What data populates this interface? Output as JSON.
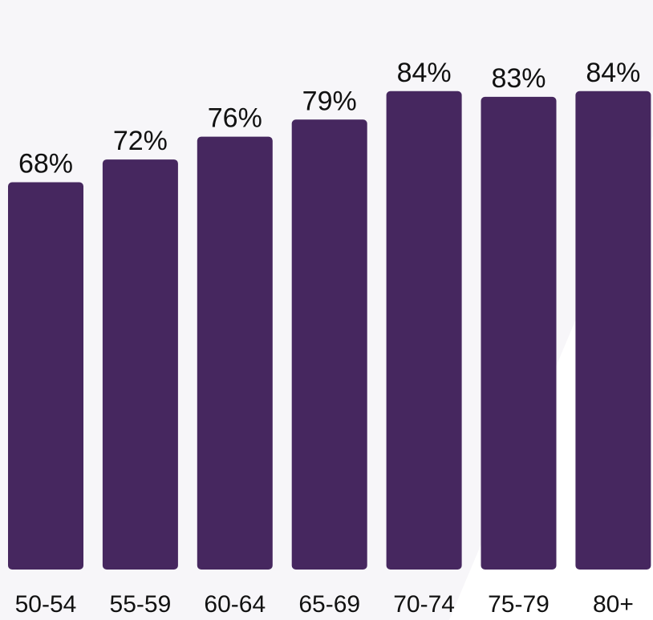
{
  "chart_data": {
    "type": "bar",
    "categories": [
      "50-54",
      "55-59",
      "60-64",
      "65-69",
      "70-74",
      "75-79",
      "80+"
    ],
    "values": [
      68,
      72,
      76,
      79,
      84,
      83,
      84
    ],
    "value_labels": [
      "68%",
      "72%",
      "76%",
      "79%",
      "84%",
      "83%",
      "84%"
    ],
    "unit": "%",
    "ylim": [
      0,
      100
    ],
    "grid": false,
    "legend": "none",
    "colors": {
      "bar": "#46275f",
      "text": "#111111",
      "background": "#ffffff",
      "background_shape": "#f7f6f9"
    }
  }
}
